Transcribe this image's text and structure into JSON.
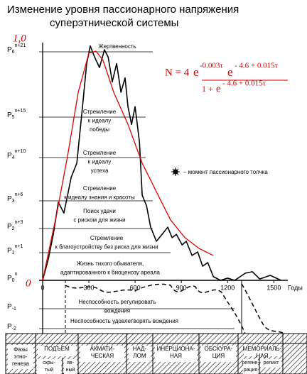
{
  "chart_data": {
    "type": "line",
    "title": [
      "Изменение уровня пассионарного напряжения",
      "суперэтнической системы"
    ],
    "x_label": "Годы",
    "xlim": [
      0,
      1600
    ],
    "xticks": [
      0,
      300,
      600,
      900,
      1200,
      1500
    ],
    "ylim": [
      -2,
      6
    ],
    "yticks": [
      {
        "value": 6,
        "label": "P",
        "sub": "6",
        "sup": "n+21"
      },
      {
        "value": 5,
        "label": "P",
        "sub": "5",
        "sup": "n+15"
      },
      {
        "value": 4,
        "label": "P",
        "sub": "4",
        "sup": "n+10"
      },
      {
        "value": 3,
        "label": "P",
        "sub": "3",
        "sup": "n+6"
      },
      {
        "value": 2,
        "label": "P",
        "sub": "2",
        "sup": "n+3"
      },
      {
        "value": 1,
        "label": "P",
        "sub": "1",
        "sup": "n+1"
      },
      {
        "value": 0,
        "label": "P",
        "sub": "0",
        "sup": "n"
      },
      {
        "value": -1,
        "label": "P",
        "sub": "-1"
      },
      {
        "value": -2,
        "label": "P",
        "sub": "-2"
      }
    ],
    "red_labels": [
      "1,0",
      "0"
    ],
    "series": [
      {
        "color": "#000000",
        "x": [
          0,
          37,
          69,
          102,
          138,
          162,
          185,
          222,
          254,
          286,
          309,
          337,
          369,
          401,
          425,
          452,
          480,
          508,
          535,
          554,
          577,
          600,
          628,
          646,
          674,
          701,
          738,
          775,
          812,
          840,
          868,
          905,
          932,
          969,
          1006,
          1038,
          1071,
          1108,
          1154,
          1200,
          1246,
          1315,
          1361,
          1408,
          1477,
          1546
        ],
        "values": [
          0,
          0.77,
          1.76,
          2.95,
          2.56,
          3.13,
          3.54,
          3.87,
          5.05,
          5.82,
          6.09,
          5.92,
          5.76,
          6.03,
          5.92,
          5.54,
          5.82,
          5.38,
          5.6,
          5.16,
          4.82,
          5.16,
          4.39,
          3.13,
          2.82,
          2.05,
          1.47,
          1.76,
          2.05,
          1.62,
          1.76,
          1.32,
          1.47,
          0.9,
          1.03,
          0.51,
          0.64,
          0.13,
          0,
          0.08,
          0,
          0.26,
          0.31,
          0.05,
          0.18,
          0
        ]
      },
      {
        "color": "#dd0000",
        "x": [
          0,
          92,
          162,
          231,
          300,
          346,
          392,
          461,
          554,
          646,
          738,
          830,
          923,
          1014,
          1107
        ],
        "values": [
          0,
          2.56,
          4.04,
          5.38,
          5.98,
          6.01,
          5.87,
          5.38,
          4.82,
          3.87,
          3.21,
          2.31,
          1.62,
          1.18,
          0.9
        ]
      }
    ],
    "formula": {
      "lhs": "N = 4",
      "e": "e",
      "exp1": "-0.003τ",
      "exp2": "- 4.6 + 0.015τ",
      "denom": "1 +"
    },
    "legend": "– момент пассионарного толчка",
    "levels": [
      [
        "Жертвенность"
      ],
      [
        "Стремление",
        "к идеалу",
        "победы"
      ],
      [
        "Стремление",
        "к идеалу",
        "успеха"
      ],
      [
        "Стремление",
        "к идеалу знания и красоты"
      ],
      [
        "Поиск удачи",
        "с риском для жизни"
      ],
      [
        "Стремление",
        "к благоустройству без риска для жизни"
      ],
      [
        "Жизнь тихого обывателя,",
        "адаптированного к биоценозу ареала"
      ],
      [
        "Неспособность регулировать",
        "вождения"
      ],
      [
        "Неспособность удовлетворять вождения"
      ]
    ],
    "phases": {
      "label": [
        "Фазы",
        "этно-",
        "генеза"
      ],
      "columns": [
        {
          "lines": [
            "ПОДЪЕМ"
          ],
          "sub": [
            [
              "скры-",
              "тый"
            ],
            [
              "яв-",
              "ный"
            ]
          ]
        },
        {
          "lines": [
            "АКМАТИ-",
            "ЧЕСКАЯ"
          ]
        },
        {
          "lines": [
            "НАД-",
            "ЛОМ"
          ]
        },
        {
          "lines": [
            "ИНЕРЦИОНА-",
            "НАЯ"
          ]
        },
        {
          "lines": [
            "ОБСКУРА-",
            "ЦИЯ"
          ]
        },
        {
          "lines": [
            "МЕМОРИАЛЬ-",
            "НАЯ"
          ],
          "sub": [
            [
              "регене-",
              "рация"
            ],
            [
              "реликт"
            ]
          ]
        }
      ]
    }
  }
}
